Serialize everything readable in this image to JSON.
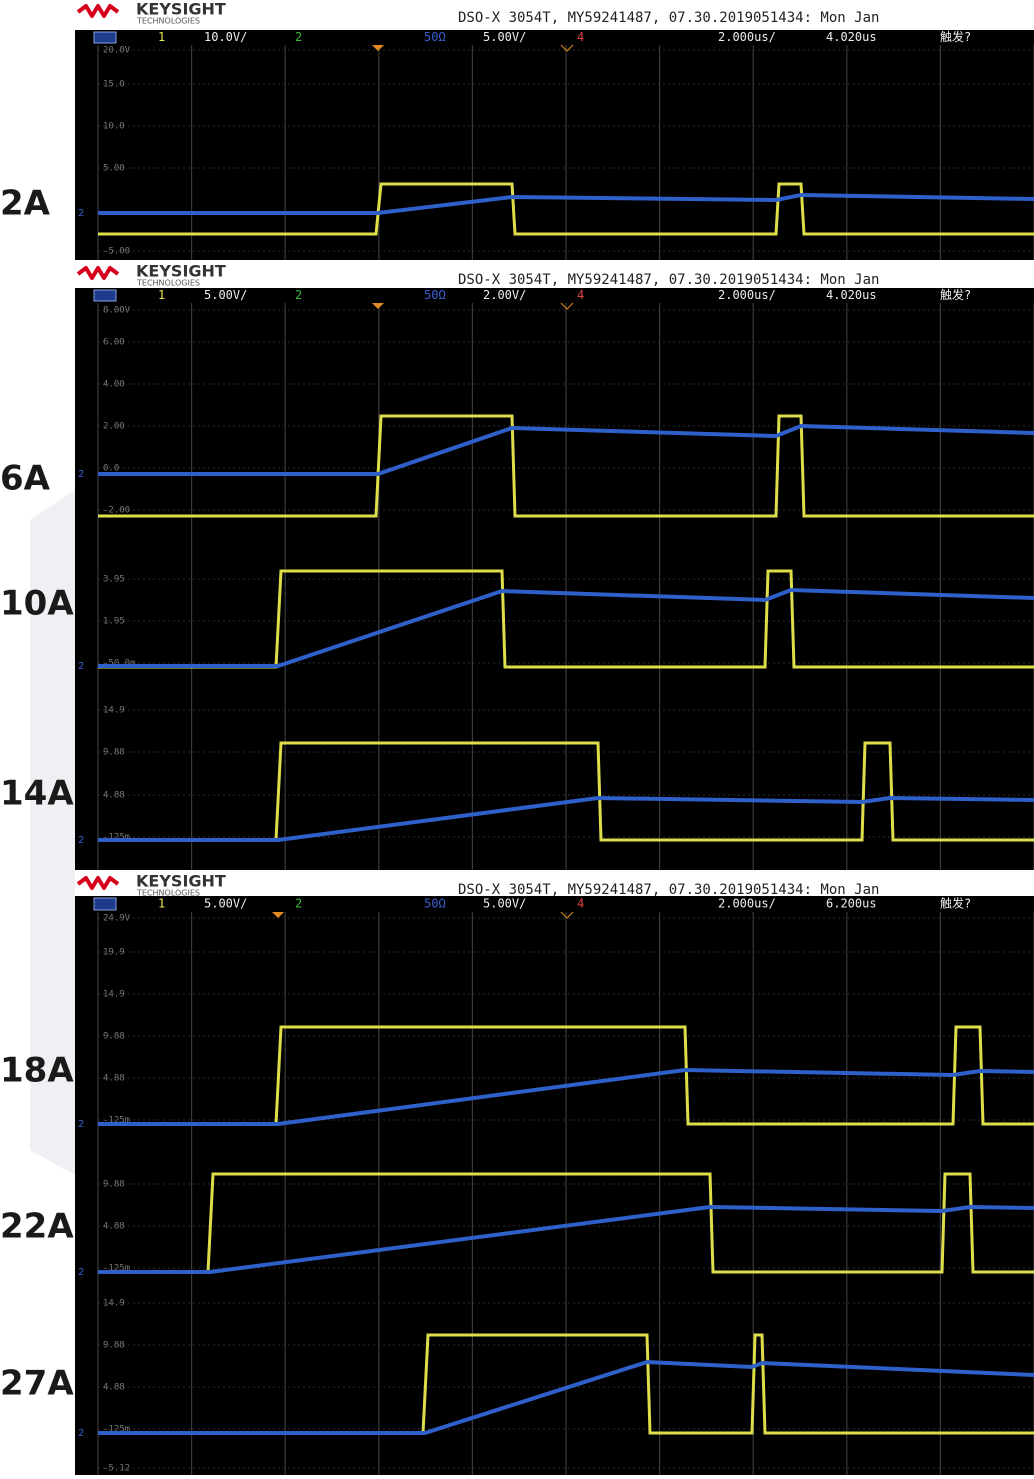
{
  "labels": [
    "2A",
    "6A",
    "10A",
    "14A",
    "18A",
    "22A",
    "27A"
  ],
  "screens": [
    {
      "brand": "KEYSIGHT",
      "brand_sub": "TECHNOLOGIES",
      "header": "DSO-X 3054T, MY59241487, 07.30.2019051434: Mon Jan",
      "ch1_num": "1",
      "ch1_scale": "10.0V/",
      "ch2_num": "2",
      "imp": "50Ω",
      "ch2_scale": "5.00V/",
      "ch4_num": "4",
      "timebase": "2.000us/",
      "delay": "4.020us",
      "trigger": "触发?",
      "scale_labels": [
        "20.0V",
        "15.0",
        "10.0",
        "5.00",
        "-5.00"
      ]
    },
    {
      "brand": "KEYSIGHT",
      "brand_sub": "TECHNOLOGIES",
      "header": "DSO-X 3054T, MY59241487, 07.30.2019051434: Mon Jan",
      "ch1_num": "1",
      "ch1_scale": "5.00V/",
      "ch2_num": "2",
      "imp": "50Ω",
      "ch2_scale": "2.00V/",
      "ch4_num": "4",
      "timebase": "2.000us/",
      "delay": "4.020us",
      "trigger": "触发?",
      "scale_labels": [
        "8.00V",
        "6.00",
        "4.00",
        "2.00",
        "0.0",
        "-2.00",
        "3.95",
        "1.95",
        "-50.0m",
        "14.9",
        "9.88",
        "4.88",
        "-125m"
      ]
    },
    {
      "brand": "KEYSIGHT",
      "brand_sub": "TECHNOLOGIES",
      "header": "DSO-X 3054T, MY59241487, 07.30.2019051434: Mon Jan",
      "ch1_num": "1",
      "ch1_scale": "5.00V/",
      "ch2_num": "2",
      "imp": "50Ω",
      "ch2_scale": "5.00V/",
      "ch4_num": "4",
      "timebase": "2.000us/",
      "delay": "6.200us",
      "trigger": "触发?",
      "scale_labels": [
        "24.9V",
        "19.9",
        "14.9",
        "9.88",
        "4.88",
        "-125m",
        "9.88",
        "4.88",
        "-125m",
        "14.9",
        "9.88",
        "4.88",
        "-125m",
        "-5.12"
      ]
    }
  ]
}
